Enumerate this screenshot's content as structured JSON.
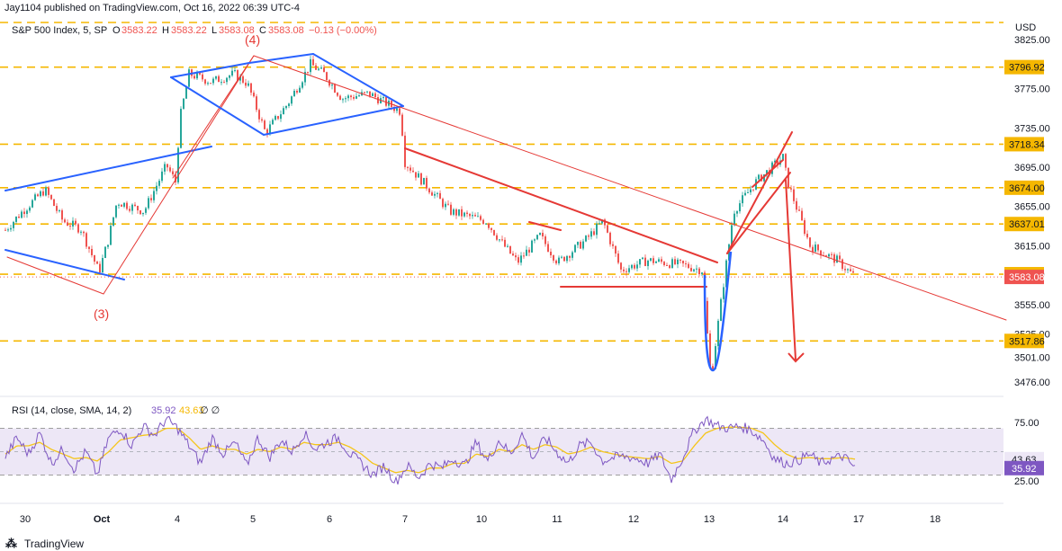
{
  "header": {
    "publisher": "Jay1104 published on TradingView.com, Oct 16, 2022 06:39 UTC-4"
  },
  "legend": {
    "symbol": "S&P 500 Index, 5, SP",
    "o_label": "O",
    "o_value": "3583.22",
    "h_label": "H",
    "h_value": "3583.22",
    "l_label": "L",
    "l_value": "3583.08",
    "c_label": "C",
    "c_value": "3583.08",
    "change": "−0.13 (−0.00%)"
  },
  "rsi_legend": {
    "label": "RSI (14, close, SMA, 14, 2)",
    "rsi_value": "35.92",
    "sma_value": "43.63",
    "extra": "∅  ∅"
  },
  "currency": "USD",
  "footer_brand": "TradingView",
  "colors": {
    "up": "#26a69a",
    "down": "#ef5350",
    "level": "#f5b700",
    "blue": "#2962ff",
    "red": "#e53935",
    "rsi": "#7e57c2",
    "rsi_sma": "#f5c518",
    "label_bg": "#f5b700",
    "last_price_bg": "#ef5350",
    "rsi_band": "#ede7f6"
  },
  "annotations": [
    {
      "text": "(4)",
      "color": "#e53935"
    },
    {
      "text": "(3)",
      "color": "#e53935"
    }
  ],
  "chart_data": [
    {
      "type": "candlestick",
      "title": "S&P 500 Index, 5, SP",
      "y_axis_side": "right",
      "ylim": [
        3460,
        3830
      ],
      "y_ticks": [
        3825.0,
        3775.0,
        3735.0,
        3695.0,
        3655.0,
        3615.0,
        3555.0,
        3525.0,
        3501.0,
        3476.0
      ],
      "x_ticks": [
        "30",
        "Oct",
        "4",
        "5",
        "6",
        "7",
        "10",
        "11",
        "12",
        "13",
        "14",
        "17",
        "18"
      ],
      "horizontal_levels": [
        3833.0,
        3796.92,
        3718.34,
        3674.0,
        3637.01,
        3585.89,
        3517.86
      ],
      "level_labels": [
        "3796.92",
        "3718.34",
        "3674.00",
        "3637.01",
        "3585.89",
        "3517.86"
      ],
      "last_price": 3583.08,
      "last_price_label": "3583.08",
      "path": [
        [
          0,
          3625
        ],
        [
          25,
          3650
        ],
        [
          50,
          3672
        ],
        [
          70,
          3640
        ],
        [
          90,
          3632
        ],
        [
          110,
          3588
        ],
        [
          120,
          3620
        ],
        [
          130,
          3660
        ],
        [
          160,
          3650
        ],
        [
          185,
          3697
        ],
        [
          195,
          3680
        ],
        [
          200,
          3745
        ],
        [
          210,
          3790
        ],
        [
          235,
          3782
        ],
        [
          260,
          3790
        ],
        [
          275,
          3780
        ],
        [
          295,
          3730
        ],
        [
          320,
          3760
        ],
        [
          345,
          3800
        ],
        [
          360,
          3790
        ],
        [
          380,
          3765
        ],
        [
          410,
          3770
        ],
        [
          445,
          3752
        ],
        [
          450,
          3700
        ],
        [
          480,
          3670
        ],
        [
          500,
          3650
        ],
        [
          540,
          3640
        ],
        [
          560,
          3615
        ],
        [
          575,
          3598
        ],
        [
          600,
          3625
        ],
        [
          620,
          3598
        ],
        [
          650,
          3620
        ],
        [
          670,
          3640
        ],
        [
          690,
          3590
        ],
        [
          720,
          3600
        ],
        [
          760,
          3595
        ],
        [
          780,
          3590
        ],
        [
          790,
          3480
        ],
        [
          800,
          3550
        ],
        [
          815,
          3650
        ],
        [
          840,
          3680
        ],
        [
          870,
          3705
        ],
        [
          875,
          3680
        ],
        [
          900,
          3615
        ],
        [
          930,
          3600
        ],
        [
          950,
          3583
        ]
      ]
    },
    {
      "type": "line",
      "title": "RSI (14, close, SMA, 14, 2)",
      "ylim": [
        15,
        85
      ],
      "y_ticks": [
        75.0,
        25.0
      ],
      "bands": [
        70,
        30
      ],
      "midline": 50,
      "series": [
        {
          "name": "RSI",
          "last": 35.92,
          "values": [
            45,
            62,
            48,
            66,
            40,
            52,
            35,
            50,
            30,
            62,
            70,
            55,
            72,
            64,
            78,
            70,
            55,
            40,
            62,
            48,
            58,
            38,
            62,
            45,
            60,
            50,
            66,
            52,
            58,
            62,
            48,
            40,
            30,
            38,
            24,
            38,
            28,
            40,
            36,
            44,
            38,
            58,
            42,
            60,
            48,
            65,
            44,
            62,
            50,
            40,
            55,
            58,
            42,
            45,
            46,
            44,
            40,
            48,
            26,
            45,
            68,
            78,
            72,
            70,
            72,
            68,
            60,
            44,
            40,
            42,
            48,
            40,
            44,
            46,
            36
          ]
        },
        {
          "name": "SMA",
          "last": 43.63,
          "values": [
            48,
            55,
            55,
            58,
            52,
            48,
            44,
            45,
            42,
            50,
            60,
            62,
            64,
            65,
            70,
            70,
            62,
            52,
            55,
            52,
            52,
            48,
            52,
            50,
            54,
            52,
            58,
            56,
            56,
            58,
            54,
            48,
            40,
            36,
            32,
            34,
            32,
            36,
            36,
            40,
            40,
            48,
            46,
            52,
            50,
            56,
            52,
            56,
            54,
            48,
            50,
            54,
            50,
            48,
            46,
            45,
            44,
            46,
            40,
            42,
            55,
            66,
            70,
            71,
            71,
            70,
            66,
            56,
            48,
            44,
            45,
            44,
            44,
            45,
            43.6
          ]
        }
      ]
    }
  ]
}
